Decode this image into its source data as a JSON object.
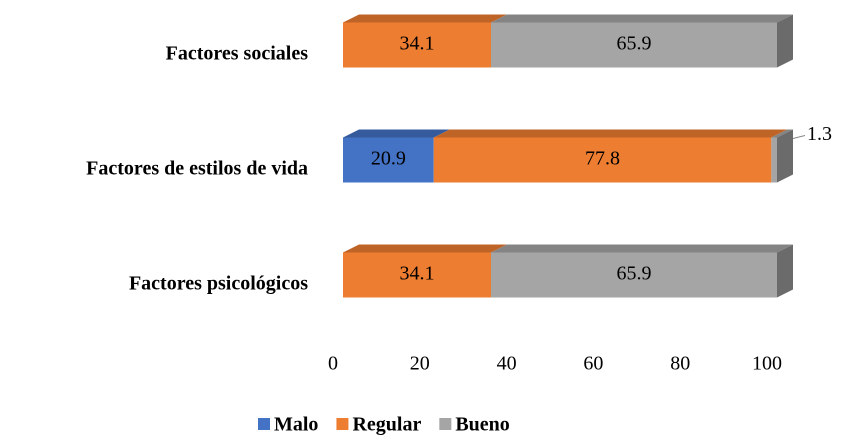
{
  "chart_data": {
    "type": "bar3d_stacked_horizontal",
    "categories": [
      "Factores sociales",
      "Factores de estilos de vida",
      "Factores psicológicos"
    ],
    "series": [
      {
        "name": "Malo",
        "color": "#4472c4",
        "values": [
          null,
          20.9,
          null
        ]
      },
      {
        "name": "Regular",
        "color": "#ed7d31",
        "values": [
          34.1,
          77.8,
          34.1
        ]
      },
      {
        "name": "Bueno",
        "color": "#a5a5a5",
        "values": [
          65.9,
          1.3,
          65.9
        ]
      }
    ],
    "xlim": [
      0,
      100
    ],
    "xticks": [
      0,
      20,
      40,
      60,
      80,
      100
    ],
    "legend": "bottom"
  }
}
